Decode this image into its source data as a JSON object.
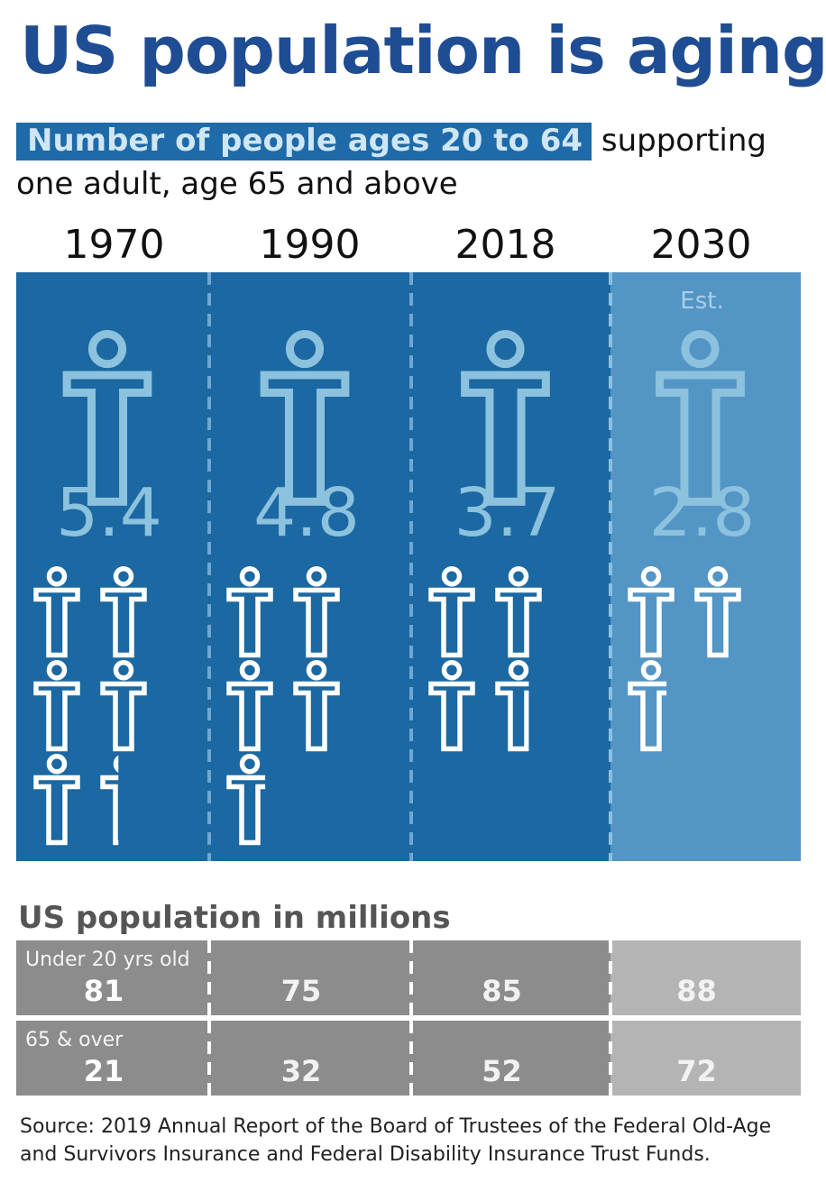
{
  "title": "US population is aging",
  "subtitle": {
    "highlight": "Number of people ages 20 to 64",
    "rest": "supporting one adult, age 65 and above"
  },
  "colors": {
    "title": "#1f4d94",
    "panel_dark": "#1b68a2",
    "panel_light": "#5395c5",
    "icon_big": "#8cc2de",
    "icon_small": "#ffffff",
    "table_dark": "#8c8c8c",
    "table_light": "#b4b4b4"
  },
  "chart_data": [
    {
      "type": "pictogram",
      "categories": [
        "1970",
        "1990",
        "2018",
        "2030"
      ],
      "values": [
        5.4,
        4.8,
        3.7,
        2.8
      ],
      "labels": [
        "5.4",
        "4.8",
        "3.7",
        "2.8"
      ],
      "estimate_note": "Est.",
      "estimate_index": 3,
      "icon": "person-icon"
    },
    {
      "type": "table",
      "title": "US population in millions",
      "categories": [
        "1970",
        "1990",
        "2018",
        "2030"
      ],
      "series": [
        {
          "name": "Under 20 yrs old",
          "values": [
            81,
            75,
            85,
            88
          ]
        },
        {
          "name": "65 & over",
          "values": [
            21,
            32,
            52,
            72
          ]
        }
      ]
    }
  ],
  "source": "Source: 2019 Annual Report of the Board of Trustees of the Federal Old-Age and Survivors Insurance and Federal Disability Insurance Trust Funds."
}
